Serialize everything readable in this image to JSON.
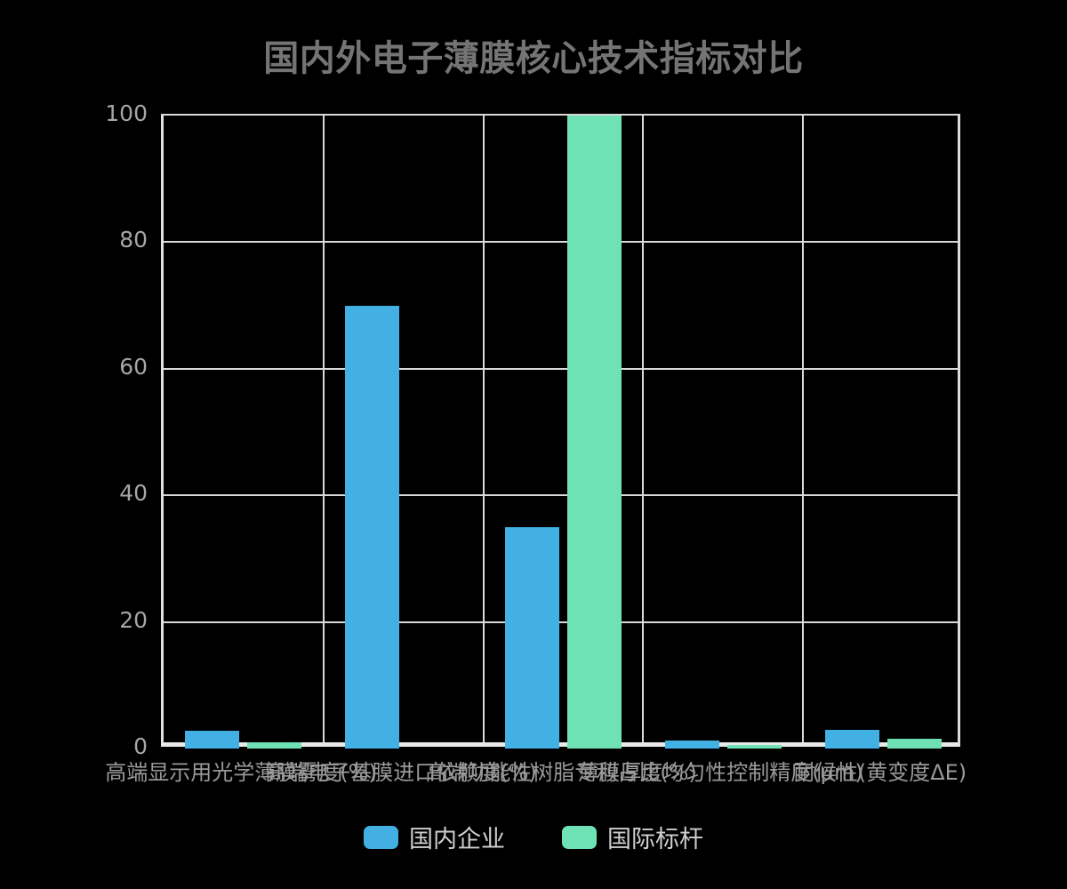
{
  "chart_data": {
    "type": "bar",
    "title": "国内外电子薄膜核心技术指标对比",
    "categories": [
      "高端显示用光学薄膜雾度(%)",
      "高端电子基膜进口依赖度(%)",
      "高端功能性树脂专利占比(%)",
      "薄膜厚度均匀性控制精度(μm)",
      "耐候性(黄变度ΔE)"
    ],
    "series": [
      {
        "name": "国内企业",
        "color": "#42b0e2",
        "values": [
          2.8,
          70,
          35,
          1.2,
          3
        ]
      },
      {
        "name": "国际标杆",
        "color": "#6fe2b5",
        "values": [
          1,
          0,
          100,
          0.6,
          1.5
        ]
      }
    ],
    "xlabel": "",
    "ylabel": "",
    "ylim": [
      0,
      100
    ],
    "yticks": [
      0,
      20,
      40,
      60,
      80,
      100
    ],
    "grid": true,
    "legend_position": "bottom"
  },
  "colors": {
    "background": "#000000",
    "gridline": "#d9d9d9",
    "axis_line": "#e8e8e8",
    "title_text": "#747474",
    "y_tick_text": "#a6a6a6",
    "x_label_text": "#999999",
    "legend_text": "#cfcfcf"
  }
}
